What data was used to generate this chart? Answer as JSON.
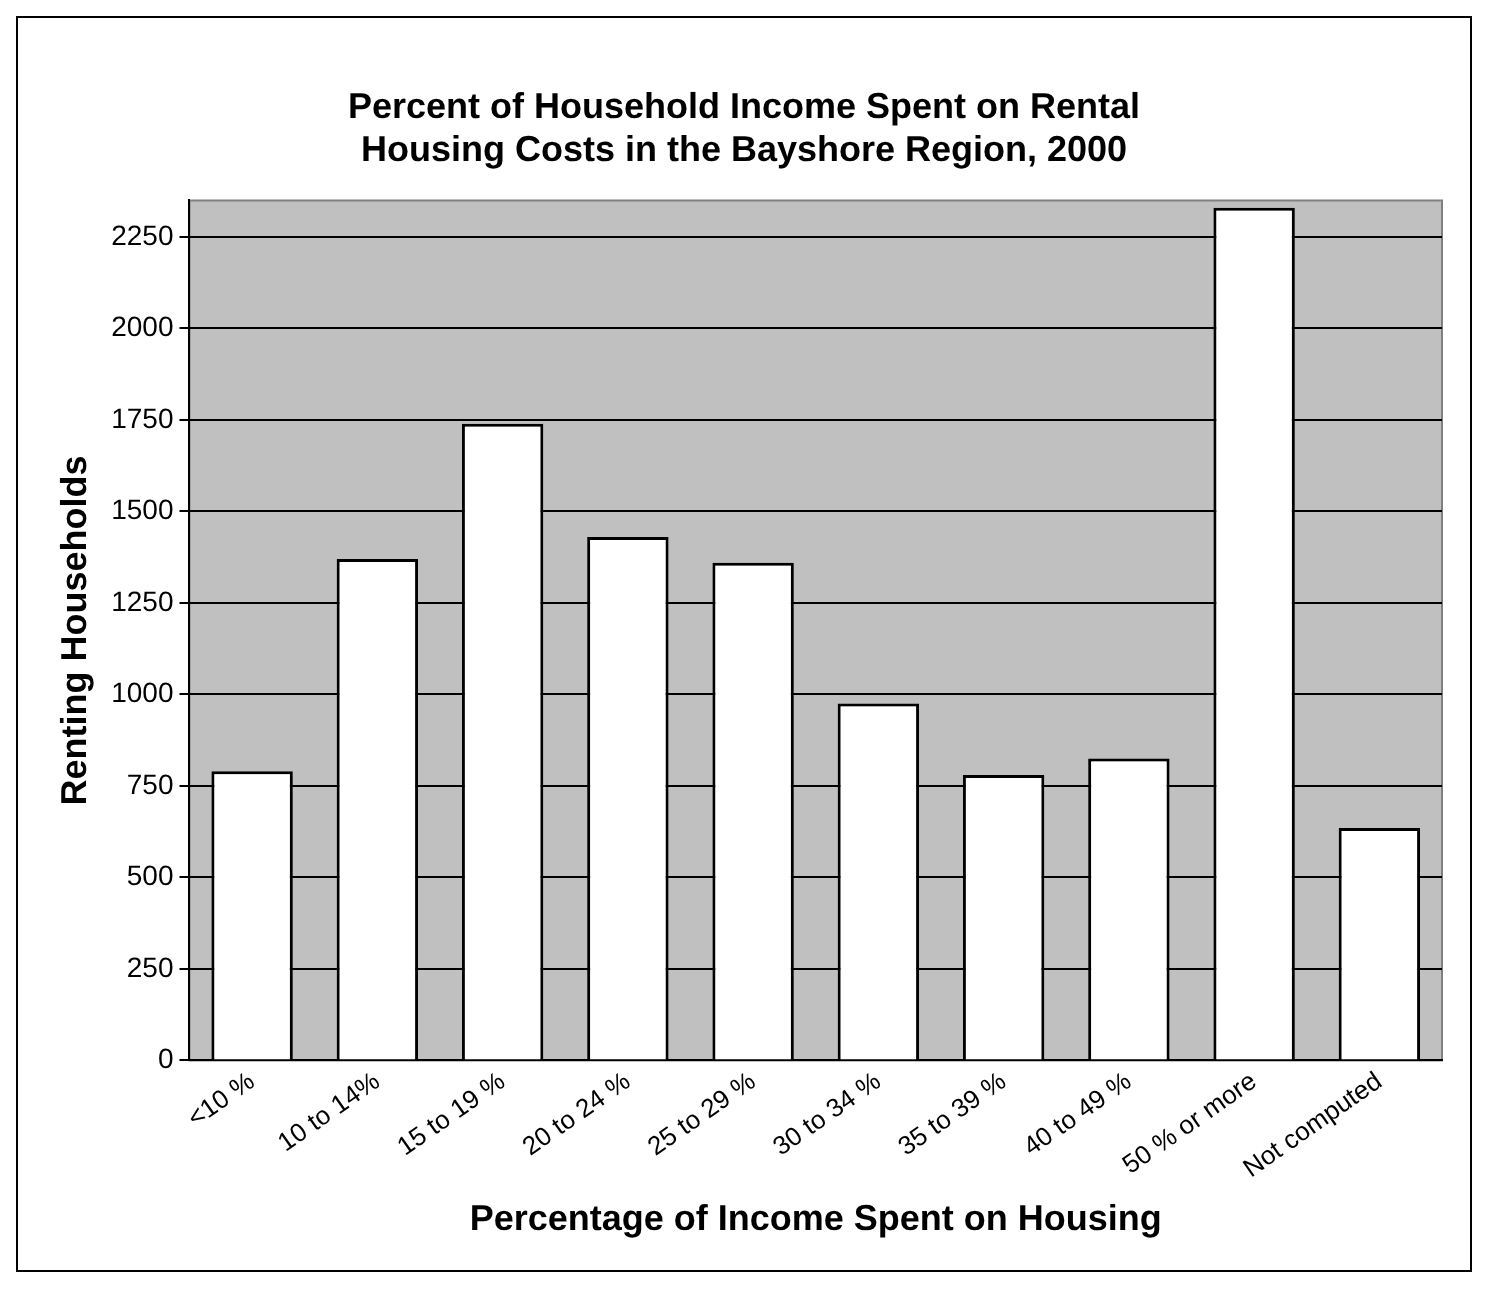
{
  "chart_data": {
    "type": "bar",
    "title": [
      "Percent of Household Income Spent on Rental",
      "Housing Costs in the Bayshore Region, 2000"
    ],
    "xlabel": "Percentage of Income Spent on Housing",
    "ylabel": "Renting Households",
    "categories": [
      "<10 %",
      "10 to 14%",
      "15 to 19 %",
      "20 to 24 %",
      "25 to 29 %",
      "30 to 34 %",
      "35 to 39 %",
      "40 to 49 %",
      "50 % or more",
      "Not computed"
    ],
    "values": [
      790,
      1370,
      1740,
      1430,
      1360,
      975,
      780,
      825,
      2330,
      635
    ],
    "color": "#ffffff",
    "ylim": [
      0,
      2350
    ],
    "yticks": [
      0,
      250,
      500,
      750,
      1000,
      1250,
      1500,
      1750,
      2000,
      2250
    ],
    "grid": "y",
    "legend": false
  }
}
